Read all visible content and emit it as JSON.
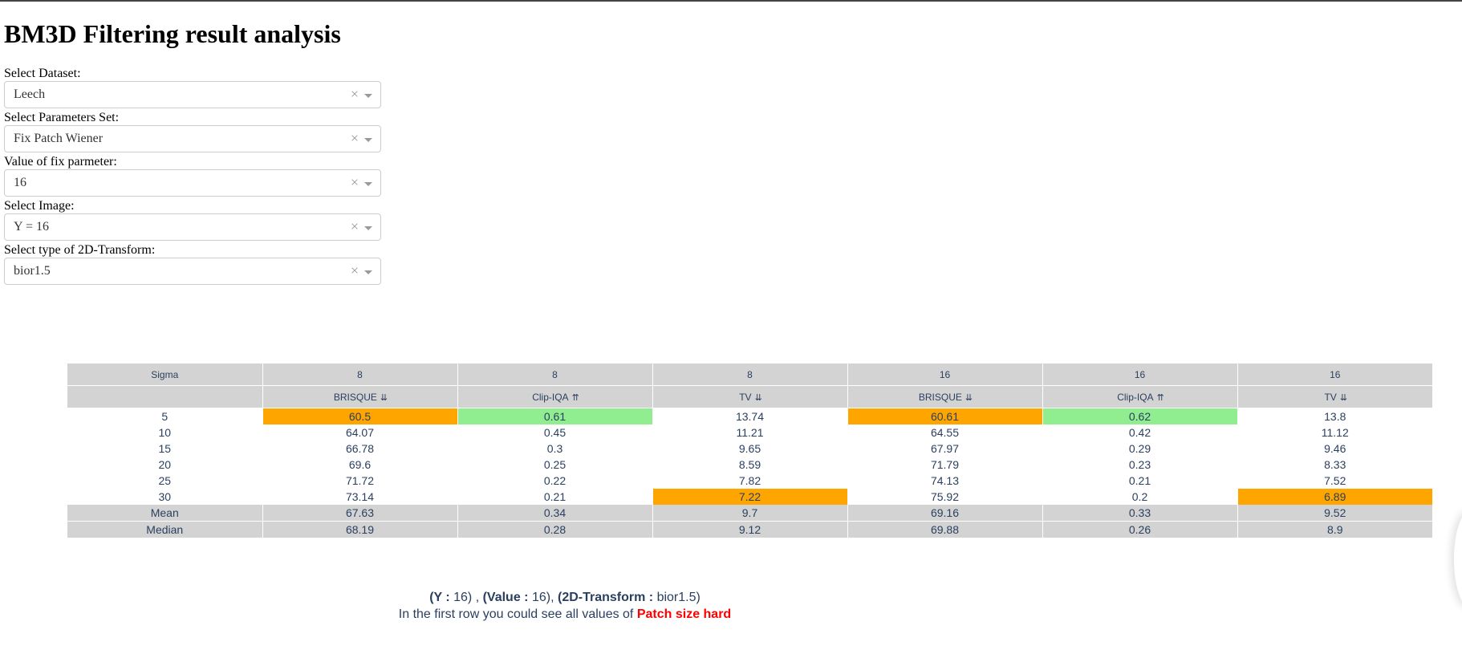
{
  "page": {
    "title": "BM3D Filtering result analysis"
  },
  "controls": [
    {
      "label": "Select Dataset:",
      "value": "Leech"
    },
    {
      "label": "Select Parameters Set:",
      "value": "Fix Patch Wiener"
    },
    {
      "label": "Value of fix parmeter:",
      "value": "16"
    },
    {
      "label": "Select Image:",
      "value": "Y = 16"
    },
    {
      "label": "Select type of 2D-Transform:",
      "value": "bior1.5"
    }
  ],
  "clear_glyph": "×",
  "table": {
    "header_row1": [
      "Sigma",
      "8",
      "8",
      "8",
      "16",
      "16",
      "16"
    ],
    "header_row2": [
      {
        "label": "",
        "sort": ""
      },
      {
        "label": "BRISQUE",
        "sort": "⇊"
      },
      {
        "label": "Clip-IQA",
        "sort": "⇈"
      },
      {
        "label": "TV",
        "sort": "⇊"
      },
      {
        "label": "BRISQUE",
        "sort": "⇊"
      },
      {
        "label": "Clip-IQA",
        "sort": "⇈"
      },
      {
        "label": "TV",
        "sort": "⇊"
      }
    ],
    "rows": [
      [
        "5",
        "60.5",
        "0.61",
        "13.74",
        "60.61",
        "0.62",
        "13.8"
      ],
      [
        "10",
        "64.07",
        "0.45",
        "11.21",
        "64.55",
        "0.42",
        "11.12"
      ],
      [
        "15",
        "66.78",
        "0.3",
        "9.65",
        "67.97",
        "0.29",
        "9.46"
      ],
      [
        "20",
        "69.6",
        "0.25",
        "8.59",
        "71.79",
        "0.23",
        "8.33"
      ],
      [
        "25",
        "71.72",
        "0.22",
        "7.82",
        "74.13",
        "0.21",
        "7.52"
      ],
      [
        "30",
        "73.14",
        "0.21",
        "7.22",
        "75.92",
        "0.2",
        "6.89"
      ]
    ],
    "aggregate_rows": [
      [
        "Mean",
        "67.63",
        "0.34",
        "9.7",
        "69.16",
        "0.33",
        "9.52"
      ],
      [
        "Median",
        "68.19",
        "0.28",
        "9.12",
        "69.88",
        "0.26",
        "8.9"
      ]
    ],
    "highlight_colors": {
      "orange": "#ffa500",
      "green": "#90ee90"
    },
    "highlights": [
      {
        "row": 0,
        "col": 1,
        "color": "orange"
      },
      {
        "row": 0,
        "col": 2,
        "color": "green"
      },
      {
        "row": 0,
        "col": 4,
        "color": "orange"
      },
      {
        "row": 0,
        "col": 5,
        "color": "green"
      },
      {
        "row": 5,
        "col": 3,
        "color": "orange"
      },
      {
        "row": 5,
        "col": 6,
        "color": "orange"
      }
    ]
  },
  "summary": {
    "y_label": "(Y :",
    "y_value": "16",
    "y_close": ") ,",
    "value_label": "(Value :",
    "value_value": "16",
    "value_close": "),",
    "transform_label": "(2D-Transform :",
    "transform_value": "bior1.5",
    "transform_close": ")",
    "line2_text": "In the first row you could see all values of",
    "line2_highlight": "Patch size hard"
  }
}
